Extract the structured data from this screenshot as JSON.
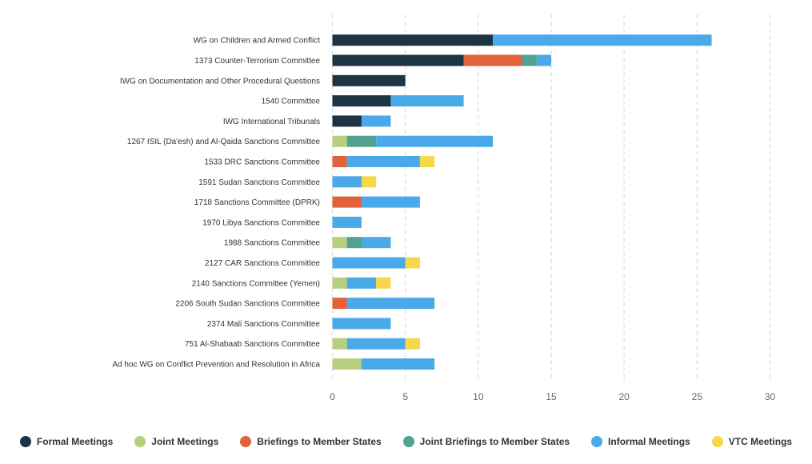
{
  "chart_data": {
    "type": "bar",
    "orientation": "horizontal",
    "stacked": true,
    "title": "",
    "xlabel": "",
    "ylabel": "",
    "xlim": [
      0,
      30
    ],
    "xticks": [
      0,
      5,
      10,
      15,
      20,
      25,
      30
    ],
    "grid": "vertical-dashed",
    "legend_position": "bottom",
    "categories": [
      "WG on Children and Armed Conflict",
      "1373 Counter-Terrorism Committee",
      "IWG on Documentation and Other Procedural Questions",
      "1540 Committee",
      "IWG International Tribunals",
      "1267 ISIL (Da'esh) and Al-Qaida Sanctions Committee",
      "1533 DRC Sanctions Committee",
      "1591 Sudan Sanctions Committee",
      "1718 Sanctions Committee (DPRK)",
      "1970 Libya Sanctions Committee",
      "1988 Sanctions Committee",
      "2127 CAR Sanctions Committee",
      "2140 Sanctions Committee (Yemen)",
      "2206 South Sudan Sanctions Committee",
      "2374 Mali Sanctions Committee",
      "751 Al-Shabaab Sanctions Committee",
      "Ad hoc WG on Conflict Prevention and Resolution in Africa"
    ],
    "series": [
      {
        "name": "Formal Meetings",
        "color": "#1d3443",
        "values": [
          11,
          9,
          5,
          4,
          2,
          0,
          0,
          0,
          0,
          0,
          0,
          0,
          0,
          0,
          0,
          0,
          0
        ]
      },
      {
        "name": "Joint Meetings",
        "color": "#b5cf7e",
        "values": [
          0,
          0,
          0,
          0,
          0,
          1,
          0,
          0,
          0,
          0,
          1,
          0,
          1,
          0,
          0,
          1,
          2
        ]
      },
      {
        "name": "Briefings to Member States",
        "color": "#e2623a",
        "values": [
          0,
          4,
          0,
          0,
          0,
          0,
          1,
          0,
          2,
          0,
          0,
          0,
          0,
          1,
          0,
          0,
          0
        ]
      },
      {
        "name": "Joint Briefings to Member States",
        "color": "#53a190",
        "values": [
          0,
          1,
          0,
          0,
          0,
          2,
          0,
          0,
          0,
          0,
          1,
          0,
          0,
          0,
          0,
          0,
          0
        ]
      },
      {
        "name": "Informal Meetings",
        "color": "#4aa9e9",
        "values": [
          15,
          1,
          0,
          5,
          2,
          8,
          5,
          2,
          4,
          2,
          2,
          5,
          2,
          6,
          4,
          4,
          5
        ]
      },
      {
        "name": "VTC Meetings",
        "color": "#f6d84a",
        "values": [
          0,
          0,
          0,
          0,
          0,
          0,
          1,
          1,
          0,
          0,
          0,
          1,
          1,
          0,
          0,
          1,
          0
        ]
      }
    ]
  }
}
